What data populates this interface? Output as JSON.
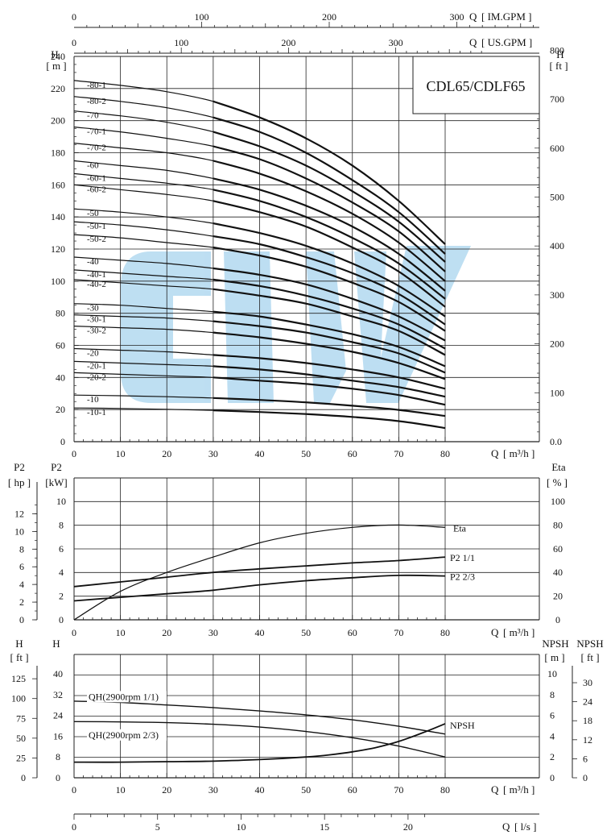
{
  "chart_data": [
    {
      "type": "line",
      "title": "CDL65/CDLF65",
      "top_axes": [
        {
          "label": "Q [IM.GPM]",
          "ticks": [
            "0",
            "100",
            "200",
            "300"
          ]
        },
        {
          "label": "Q [US.GPM]",
          "ticks": [
            "0",
            "100",
            "200",
            "300"
          ]
        }
      ],
      "xlabel": "Q [m³/h]",
      "xlim": [
        0,
        80
      ],
      "x_ticks": [
        "0",
        "10",
        "20",
        "30",
        "40",
        "50",
        "60",
        "70",
        "80"
      ],
      "ylabel": "H [m]",
      "ylim": [
        0,
        240
      ],
      "y_ticks": [
        "0",
        "20",
        "40",
        "60",
        "80",
        "100",
        "120",
        "140",
        "160",
        "180",
        "200",
        "220",
        "240"
      ],
      "y2label": "H [ft]",
      "y2_ticks": [
        "0.0",
        "100",
        "200",
        "300",
        "400",
        "500",
        "600",
        "700",
        "800"
      ],
      "series": [
        {
          "name": "-80-1",
          "x": [
            0,
            10,
            20,
            30,
            40,
            50,
            60,
            70,
            80
          ],
          "values": [
            225,
            222,
            218,
            212,
            202,
            189,
            172,
            150,
            123
          ]
        },
        {
          "name": "-80-2",
          "x": [
            0,
            10,
            20,
            30,
            40,
            50,
            60,
            70,
            80
          ],
          "values": [
            215,
            212,
            208,
            202,
            193,
            180,
            163,
            143,
            117
          ]
        },
        {
          "name": "-70",
          "x": [
            0,
            10,
            20,
            30,
            40,
            50,
            60,
            70,
            80
          ],
          "values": [
            206,
            203,
            199,
            193,
            184,
            172,
            156,
            137,
            112
          ]
        },
        {
          "name": "-70-1",
          "x": [
            0,
            10,
            20,
            30,
            40,
            50,
            60,
            70,
            80
          ],
          "values": [
            196,
            193,
            189,
            184,
            176,
            164,
            149,
            131,
            106
          ]
        },
        {
          "name": "-70-2",
          "x": [
            0,
            10,
            20,
            30,
            40,
            50,
            60,
            70,
            80
          ],
          "values": [
            186,
            183,
            180,
            175,
            167,
            156,
            142,
            124,
            100
          ]
        },
        {
          "name": "-60",
          "x": [
            0,
            10,
            20,
            30,
            40,
            50,
            60,
            70,
            80
          ],
          "values": [
            175,
            172,
            169,
            164,
            157,
            147,
            134,
            117,
            94
          ]
        },
        {
          "name": "-60-1",
          "x": [
            0,
            10,
            20,
            30,
            40,
            50,
            60,
            70,
            80
          ],
          "values": [
            167,
            164,
            161,
            157,
            150,
            140,
            127,
            111,
            89
          ]
        },
        {
          "name": "-60-2",
          "x": [
            0,
            10,
            20,
            30,
            40,
            50,
            60,
            70,
            80
          ],
          "values": [
            160,
            157,
            154,
            150,
            143,
            134,
            121,
            106,
            84
          ]
        },
        {
          "name": "-50",
          "x": [
            0,
            10,
            20,
            30,
            40,
            50,
            60,
            70,
            80
          ],
          "values": [
            145,
            143,
            140,
            136,
            130,
            122,
            111,
            97,
            78
          ]
        },
        {
          "name": "-50-1",
          "x": [
            0,
            10,
            20,
            30,
            40,
            50,
            60,
            70,
            80
          ],
          "values": [
            137,
            135,
            132,
            128,
            123,
            115,
            105,
            92,
            73
          ]
        },
        {
          "name": "-50-2",
          "x": [
            0,
            10,
            20,
            30,
            40,
            50,
            60,
            70,
            80
          ],
          "values": [
            129,
            127,
            124,
            121,
            116,
            109,
            99,
            87,
            69
          ]
        },
        {
          "name": "-40",
          "x": [
            0,
            10,
            20,
            30,
            40,
            50,
            60,
            70,
            80
          ],
          "values": [
            115,
            113,
            111,
            108,
            104,
            98,
            89,
            78,
            63
          ]
        },
        {
          "name": "-40-1",
          "x": [
            0,
            10,
            20,
            30,
            40,
            50,
            60,
            70,
            80
          ],
          "values": [
            107,
            105,
            103,
            101,
            97,
            91,
            83,
            73,
            58
          ]
        },
        {
          "name": "-40-2",
          "x": [
            0,
            10,
            20,
            30,
            40,
            50,
            60,
            70,
            80
          ],
          "values": [
            101,
            99,
            97,
            95,
            91,
            86,
            78,
            69,
            54
          ]
        },
        {
          "name": "-30",
          "x": [
            0,
            10,
            20,
            30,
            40,
            50,
            60,
            70,
            80
          ],
          "values": [
            86,
            85,
            83,
            81,
            78,
            73,
            67,
            59,
            47
          ]
        },
        {
          "name": "-30-1",
          "x": [
            0,
            10,
            20,
            30,
            40,
            50,
            60,
            70,
            80
          ],
          "values": [
            79,
            78,
            77,
            75,
            72,
            68,
            62,
            55,
            43
          ]
        },
        {
          "name": "-30-2",
          "x": [
            0,
            10,
            20,
            30,
            40,
            50,
            60,
            70,
            80
          ],
          "values": [
            72,
            71,
            70,
            68,
            65,
            61,
            56,
            49,
            39
          ]
        },
        {
          "name": "-20",
          "x": [
            0,
            10,
            20,
            30,
            40,
            50,
            60,
            70,
            80
          ],
          "values": [
            58,
            57,
            56,
            54,
            52,
            49,
            45,
            40,
            33
          ]
        },
        {
          "name": "-20-1",
          "x": [
            0,
            10,
            20,
            30,
            40,
            50,
            60,
            70,
            80
          ],
          "values": [
            50,
            49,
            48,
            47,
            45,
            42,
            38,
            34,
            28
          ]
        },
        {
          "name": "-20-2",
          "x": [
            0,
            10,
            20,
            30,
            40,
            50,
            60,
            70,
            80
          ],
          "values": [
            43,
            42,
            41,
            40,
            38,
            36,
            33,
            29,
            23
          ]
        },
        {
          "name": "-10",
          "x": [
            0,
            10,
            20,
            30,
            40,
            50,
            60,
            70,
            80
          ],
          "values": [
            29,
            28.6,
            28,
            27.2,
            26,
            24.5,
            22.4,
            19.8,
            16
          ]
        },
        {
          "name": "-10-1",
          "x": [
            0,
            10,
            20,
            30,
            40,
            50,
            60,
            70,
            80
          ],
          "values": [
            21,
            20.7,
            20.2,
            19.5,
            18.5,
            17.2,
            15.4,
            12.8,
            8.5
          ]
        }
      ]
    },
    {
      "type": "line",
      "xlabel": "Q [m³/h]",
      "xlim": [
        0,
        80
      ],
      "x_ticks": [
        "0",
        "10",
        "20",
        "30",
        "40",
        "50",
        "60",
        "70",
        "80"
      ],
      "ylabel_left_outer": "P2 [hp]",
      "y_outer_ticks": [
        "0",
        "2",
        "4",
        "6",
        "8",
        "10",
        "12"
      ],
      "ylabel": "P2 [kW]",
      "ylim": [
        0,
        10
      ],
      "y_ticks": [
        "0",
        "2",
        "4",
        "6",
        "8",
        "10"
      ],
      "y2label": "Eta [%]",
      "y2lim": [
        0,
        100
      ],
      "y2_ticks": [
        "0",
        "20",
        "40",
        "60",
        "80",
        "100"
      ],
      "series": [
        {
          "name": "Eta",
          "axis": "right",
          "x": [
            0,
            10,
            20,
            30,
            40,
            50,
            60,
            70,
            80
          ],
          "values": [
            0,
            24,
            40,
            53,
            65,
            73,
            78,
            80,
            78
          ]
        },
        {
          "name": "P2 1/1",
          "axis": "left",
          "x": [
            0,
            10,
            20,
            30,
            40,
            50,
            60,
            70,
            80
          ],
          "values": [
            2.8,
            3.2,
            3.6,
            4.0,
            4.3,
            4.55,
            4.8,
            5.0,
            5.3
          ]
        },
        {
          "name": "P2 2/3",
          "axis": "left",
          "x": [
            0,
            10,
            20,
            30,
            40,
            50,
            60,
            70,
            80
          ],
          "values": [
            1.6,
            1.9,
            2.2,
            2.5,
            2.95,
            3.3,
            3.55,
            3.75,
            3.7
          ]
        }
      ]
    },
    {
      "type": "line",
      "xlabel": "Q [m³/h]",
      "xlim": [
        0,
        80
      ],
      "x_ticks": [
        "0",
        "10",
        "20",
        "30",
        "40",
        "50",
        "60",
        "70",
        "80"
      ],
      "ylabel_left_outer": "H [ft]",
      "y_outer_ticks": [
        "0",
        "25",
        "50",
        "75",
        "100",
        "125"
      ],
      "ylabel": "H",
      "ylim": [
        0,
        48
      ],
      "y_ticks": [
        "0",
        "8",
        "16",
        "24",
        "32",
        "40"
      ],
      "y2label": "NPSH [m]",
      "y2_ticks": [
        "0",
        "2",
        "4",
        "6",
        "8",
        "10"
      ],
      "y3label": "NPSH [ft]",
      "y3_ticks": [
        "0",
        "6",
        "12",
        "18",
        "24",
        "30"
      ],
      "series": [
        {
          "name": "QH(2900rpm 1/1)",
          "axis": "left",
          "x": [
            0,
            10,
            20,
            30,
            40,
            50,
            60,
            70,
            80
          ],
          "values": [
            29.5,
            29,
            28,
            27,
            25.7,
            24.2,
            22.3,
            19.8,
            16.8
          ]
        },
        {
          "name": "QH(2900rpm 2/3)",
          "axis": "left",
          "x": [
            0,
            10,
            20,
            30,
            40,
            50,
            60,
            70,
            80
          ],
          "values": [
            21.6,
            21.5,
            21.2,
            20.6,
            19.5,
            17.8,
            15.4,
            12.2,
            8
          ]
        },
        {
          "name": "NPSH",
          "axis": "right",
          "x": [
            0,
            10,
            20,
            30,
            40,
            50,
            55,
            60,
            65,
            70,
            75,
            80
          ],
          "values": [
            1.5,
            1.5,
            1.55,
            1.6,
            1.75,
            2.0,
            2.2,
            2.5,
            2.9,
            3.5,
            4.3,
            5.2
          ]
        }
      ]
    },
    {
      "type": "axis",
      "xlabel": "Q [l/s]",
      "x_ticks": [
        "0",
        "5",
        "10",
        "15",
        "20"
      ]
    }
  ]
}
